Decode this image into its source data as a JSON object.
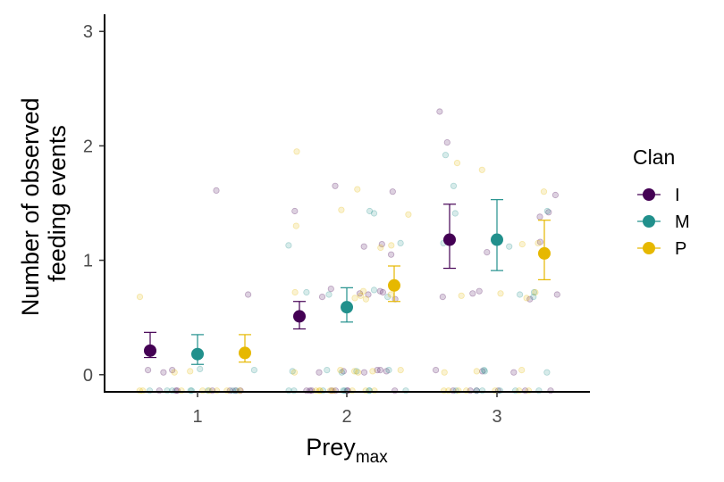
{
  "chart_data": {
    "type": "scatter",
    "xlabel": "Prey",
    "xlabel_subscript": "max",
    "ylabel_lines": [
      "Number of observed",
      "feeding events"
    ],
    "categories": [
      "1",
      "2",
      "3"
    ],
    "y_ticks": [
      "0",
      "1",
      "2",
      "3"
    ],
    "ylim": [
      -0.15,
      3.15
    ],
    "grid": false,
    "legend": {
      "title": "Clan",
      "placement": "right",
      "entries": [
        "I",
        "M",
        "P"
      ]
    },
    "colors": {
      "I": "#440154",
      "M": "#21908c",
      "P": "#e6b800"
    },
    "series": [
      {
        "name": "I",
        "means": [
          0.21,
          0.51,
          1.18
        ],
        "ci_low": [
          0.15,
          0.4,
          0.93
        ],
        "ci_high": [
          0.37,
          0.64,
          1.49
        ]
      },
      {
        "name": "M",
        "means": [
          0.18,
          0.59,
          1.18
        ],
        "ci_low": [
          0.09,
          0.46,
          0.91
        ],
        "ci_high": [
          0.35,
          0.76,
          1.53
        ]
      },
      {
        "name": "P",
        "means": [
          0.19,
          0.78,
          1.06
        ],
        "ci_low": [
          0.11,
          0.64,
          0.83
        ],
        "ci_high": [
          0.35,
          0.95,
          1.35
        ]
      }
    ],
    "raw_points": [
      {
        "series": "I",
        "x": 1,
        "values": [
          1.61,
          0.7,
          0.04,
          0.04,
          0.02,
          -0.14,
          -0.14,
          -0.14,
          -0.14,
          -0.14,
          -0.14,
          -0.14
        ]
      },
      {
        "series": "M",
        "x": 1,
        "values": [
          0.04,
          0.05,
          -0.14,
          -0.14,
          -0.14,
          -0.14,
          -0.14,
          -0.14,
          -0.14,
          -0.14
        ]
      },
      {
        "series": "P",
        "x": 1,
        "values": [
          0.68,
          0.02,
          0.03,
          -0.14,
          -0.14,
          -0.14,
          -0.14,
          -0.14,
          -0.14,
          -0.14,
          -0.14
        ]
      },
      {
        "series": "I",
        "x": 2,
        "values": [
          1.65,
          1.6,
          1.43,
          1.14,
          1.12,
          1.05,
          0.75,
          0.73,
          0.72,
          0.71,
          0.7,
          0.68,
          0.66,
          0.04,
          0.03,
          0.02,
          0.03,
          0.04,
          0.02,
          -0.14,
          -0.14,
          -0.14,
          -0.14,
          -0.14,
          -0.14,
          -0.14,
          -0.14
        ]
      },
      {
        "series": "M",
        "x": 2,
        "values": [
          1.43,
          1.41,
          1.15,
          1.13,
          0.74,
          0.72,
          0.7,
          0.68,
          0.04,
          0.03,
          0.02,
          0.04,
          0.03,
          -0.14,
          -0.14,
          -0.14,
          -0.14,
          -0.14,
          -0.14,
          -0.14,
          -0.14
        ]
      },
      {
        "series": "P",
        "x": 2,
        "values": [
          1.95,
          1.62,
          1.44,
          1.4,
          1.3,
          1.13,
          1.11,
          0.73,
          0.72,
          0.7,
          0.69,
          0.67,
          0.66,
          0.04,
          0.03,
          0.02,
          0.03,
          0.04,
          0.02,
          -0.14,
          -0.14,
          -0.14,
          -0.14,
          -0.14,
          -0.14,
          -0.14,
          -0.14
        ]
      },
      {
        "series": "I",
        "x": 3,
        "values": [
          2.3,
          2.03,
          1.57,
          1.42,
          1.38,
          1.16,
          1.07,
          0.73,
          0.71,
          0.7,
          0.68,
          0.66,
          0.04,
          0.03,
          0.02,
          -0.14,
          -0.14,
          -0.14,
          -0.14,
          -0.14,
          -0.14
        ]
      },
      {
        "series": "M",
        "x": 3,
        "values": [
          1.92,
          1.65,
          1.43,
          1.41,
          1.15,
          1.12,
          0.72,
          0.7,
          0.68,
          0.04,
          0.03,
          0.02,
          -0.14,
          -0.14,
          -0.14,
          -0.14,
          -0.14,
          -0.14
        ]
      },
      {
        "series": "P",
        "x": 3,
        "values": [
          1.85,
          1.79,
          1.6,
          1.15,
          1.14,
          0.72,
          0.71,
          0.69,
          0.67,
          0.04,
          0.03,
          0.02,
          -0.14,
          -0.14,
          -0.14,
          -0.14,
          -0.14,
          -0.14,
          -0.14
        ]
      }
    ]
  }
}
